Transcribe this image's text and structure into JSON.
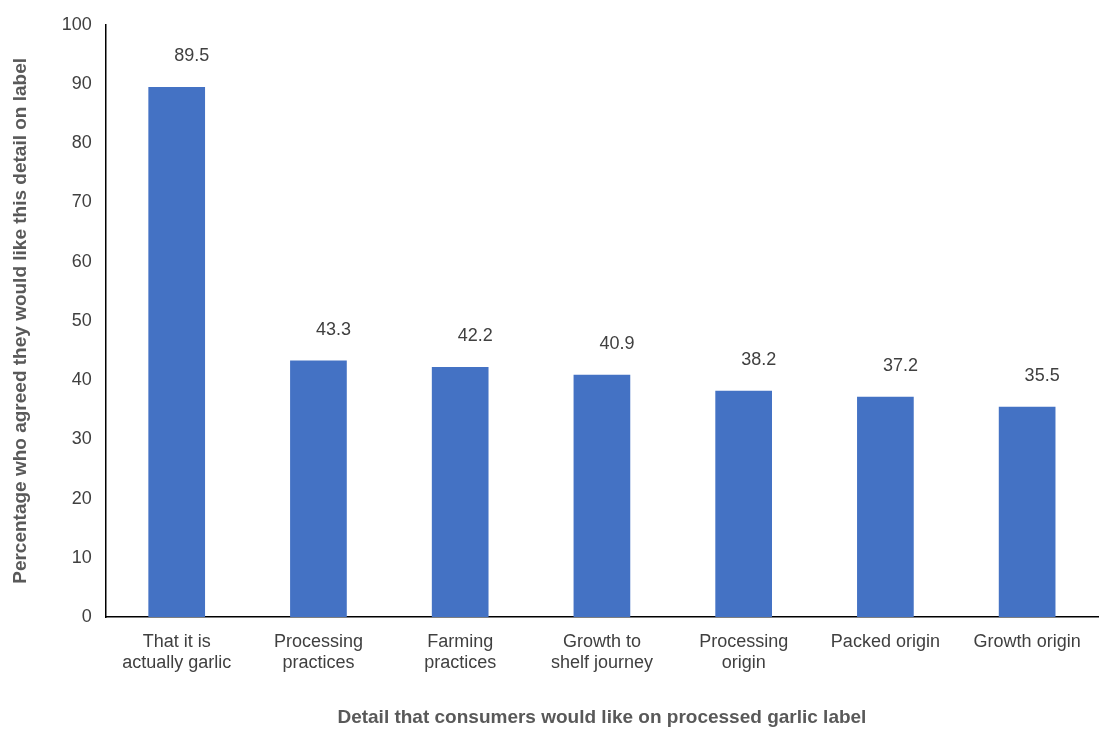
{
  "chart_data": {
    "type": "bar",
    "xlabel": "Detail that consumers would like on processed garlic label",
    "ylabel": "Percentage who agreed they would like this detail on label",
    "categories": [
      "That it is actually garlic",
      "Processing practices",
      "Farming practices",
      "Growth to shelf journey",
      "Processing origin",
      "Packed origin",
      "Growth origin"
    ],
    "values": [
      89.5,
      43.3,
      42.2,
      40.9,
      38.2,
      37.2,
      35.5
    ],
    "color": "#4472c4",
    "ylim": [
      0,
      100
    ],
    "yticks": [
      0,
      10,
      20,
      30,
      40,
      50,
      60,
      70,
      80,
      90,
      100
    ],
    "grid": false,
    "legend": false,
    "data_labels": true
  }
}
